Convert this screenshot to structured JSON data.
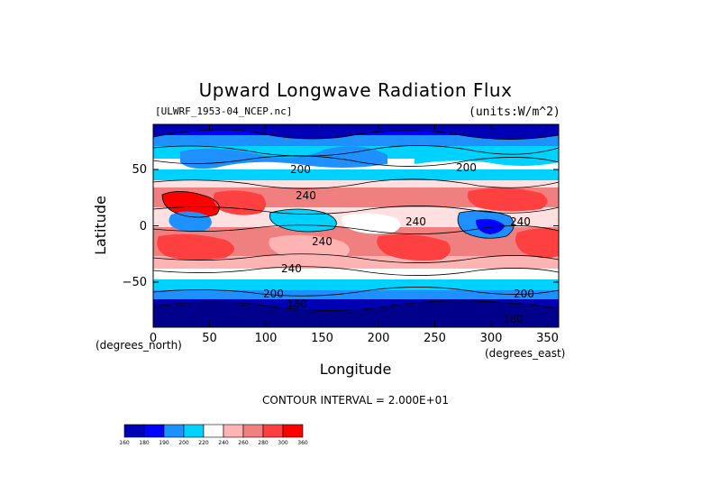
{
  "title": "Upward Longwave Radiation Flux",
  "file_label": "[ULWRF_1953-04_NCEP.nc]",
  "units_label": "(units:W/m^2)",
  "x_axis": {
    "label": "Longitude",
    "units": "(degrees_east)",
    "range": [
      0,
      360
    ],
    "ticks": [
      "0",
      "50",
      "100",
      "150",
      "200",
      "250",
      "300",
      "350"
    ]
  },
  "y_axis": {
    "label": "Latitude",
    "units": "(degrees_north)",
    "range": [
      -90,
      90
    ],
    "ticks": [
      "50",
      "0",
      "−50"
    ]
  },
  "contour_interval_text": "CONTOUR INTERVAL = 2.000E+01",
  "contour_labels": [
    "200",
    "200",
    "240",
    "240",
    "240",
    "240",
    "200",
    "180",
    "200",
    "180",
    "240"
  ],
  "colorbar": {
    "levels": [
      "160",
      "180",
      "190",
      "200",
      "220",
      "240",
      "260",
      "280",
      "300",
      "360"
    ],
    "colors": [
      "#0000b4",
      "#0000ff",
      "#1e90ff",
      "#00d2ff",
      "#ffffff",
      "#ffb4b4",
      "#f08080",
      "#ff4040",
      "#ff0000"
    ]
  },
  "colors": {
    "ocean_dark": "#0000b4",
    "blue": "#0000ff",
    "mid_blue": "#1e90ff",
    "cyan": "#00d2ff",
    "white": "#ffffff",
    "pink_light": "#ffe0e0",
    "pink": "#ffb4b4",
    "salmon": "#f08080",
    "red": "#ff4040"
  }
}
